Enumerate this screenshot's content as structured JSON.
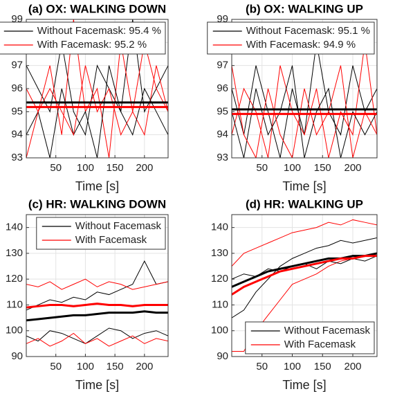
{
  "chart_data": [
    {
      "type": "line",
      "title": "(a) OX: WALKING DOWN",
      "xlabel": "Time [s]",
      "x": [
        0,
        20,
        40,
        60,
        80,
        100,
        120,
        140,
        160,
        180,
        200,
        220,
        240
      ],
      "xlim": [
        0,
        240
      ],
      "xticks": [
        50,
        100,
        150,
        200
      ],
      "ylim": [
        93,
        99
      ],
      "yticks": [
        93,
        94,
        95,
        96,
        97,
        98,
        99
      ],
      "grid": true,
      "legend": "upper right",
      "series": [
        {
          "name": "Without Facemask: 95.4 %",
          "color": "#000000",
          "values": [
            97,
            96,
            95,
            98,
            95,
            94,
            97,
            96,
            95,
            99,
            95,
            96,
            97
          ]
        },
        {
          "name": "With Facemask: 95.2 %",
          "color": "#ff0000",
          "values": [
            96,
            95,
            97,
            94,
            99,
            95,
            96,
            93,
            98,
            95,
            94,
            97,
            95
          ]
        },
        {
          "color": "#000000",
          "values": [
            94,
            95,
            93,
            96,
            94,
            95,
            93,
            97,
            95,
            94,
            96,
            95,
            94
          ]
        },
        {
          "color": "#ff0000",
          "values": [
            93,
            95,
            96,
            95,
            94,
            97,
            95,
            96,
            94,
            95,
            98,
            96,
            95
          ]
        },
        {
          "color": "#000000",
          "width": 3,
          "values": [
            95.4,
            95.4,
            95.4,
            95.4,
            95.4,
            95.4,
            95.4,
            95.4,
            95.4,
            95.4,
            95.4,
            95.4,
            95.4
          ]
        },
        {
          "color": "#ff0000",
          "width": 3,
          "values": [
            95.2,
            95.2,
            95.2,
            95.2,
            95.2,
            95.2,
            95.2,
            95.2,
            95.2,
            95.2,
            95.2,
            95.2,
            95.2
          ]
        }
      ]
    },
    {
      "type": "line",
      "title": "(b) OX: WALKING UP",
      "xlabel": "Time [s]",
      "x": [
        0,
        20,
        40,
        60,
        80,
        100,
        120,
        140,
        160,
        180,
        200,
        220,
        240
      ],
      "xlim": [
        0,
        240
      ],
      "xticks": [
        50,
        100,
        150,
        200
      ],
      "ylim": [
        93,
        99
      ],
      "yticks": [
        93,
        94,
        95,
        96,
        97,
        98,
        99
      ],
      "grid": true,
      "legend": "upper right",
      "series": [
        {
          "name": "Without Facemask: 95.1 %",
          "color": "#000000",
          "values": [
            96,
            94,
            97,
            95,
            93,
            96,
            94,
            98,
            95,
            94,
            97,
            95,
            96
          ]
        },
        {
          "name": "With Facemask: 94.9 %",
          "color": "#ff0000",
          "values": [
            94,
            96,
            95,
            93,
            97,
            95,
            94,
            96,
            93,
            95,
            94,
            98,
            94
          ]
        },
        {
          "color": "#000000",
          "values": [
            95,
            93,
            96,
            94,
            95,
            97,
            93,
            95,
            96,
            93,
            95,
            94,
            95
          ]
        },
        {
          "color": "#ff0000",
          "values": [
            97,
            94,
            93,
            96,
            94,
            93,
            96,
            94,
            95,
            97,
            93,
            95,
            94
          ]
        },
        {
          "color": "#000000",
          "width": 3,
          "values": [
            95.1,
            95.1,
            95.1,
            95.1,
            95.1,
            95.1,
            95.1,
            95.1,
            95.1,
            95.1,
            95.1,
            95.1,
            95.1
          ]
        },
        {
          "color": "#ff0000",
          "width": 3,
          "values": [
            94.9,
            94.9,
            94.9,
            94.9,
            94.9,
            94.9,
            94.9,
            94.9,
            94.9,
            94.9,
            94.9,
            94.9,
            94.9
          ]
        }
      ]
    },
    {
      "type": "line",
      "title": "(c) HR: WALKING DOWN",
      "xlabel": "Time [s]",
      "x": [
        0,
        20,
        40,
        60,
        80,
        100,
        120,
        140,
        160,
        180,
        200,
        220,
        240
      ],
      "xlim": [
        0,
        240
      ],
      "xticks": [
        50,
        100,
        150,
        200
      ],
      "ylim": [
        90,
        145
      ],
      "yticks": [
        90,
        100,
        110,
        120,
        130,
        140
      ],
      "grid": true,
      "legend": "upper right",
      "series": [
        {
          "name": "Without Facemask",
          "color": "#000000",
          "values": [
            108,
            110,
            112,
            111,
            113,
            112,
            115,
            114,
            116,
            118,
            127,
            118,
            119
          ]
        },
        {
          "name": "With Facemask",
          "color": "#ff0000",
          "values": [
            118,
            117,
            119,
            116,
            118,
            120,
            117,
            119,
            118,
            116,
            117,
            118,
            119
          ]
        },
        {
          "color": "#000000",
          "values": [
            98,
            96,
            100,
            99,
            97,
            95,
            98,
            101,
            100,
            97,
            99,
            100,
            98
          ]
        },
        {
          "color": "#ff0000",
          "values": [
            95,
            97,
            94,
            96,
            99,
            95,
            97,
            94,
            96,
            98,
            95,
            97,
            96
          ]
        },
        {
          "color": "#000000",
          "width": 3,
          "values": [
            104,
            104.5,
            105,
            105.5,
            106,
            106,
            106.5,
            107,
            107,
            107,
            107.5,
            107,
            107
          ]
        },
        {
          "color": "#ff0000",
          "width": 3,
          "values": [
            109,
            109.5,
            110,
            110,
            109.5,
            110,
            110.5,
            110,
            110,
            109.5,
            110,
            110,
            110
          ]
        }
      ]
    },
    {
      "type": "line",
      "title": "(d) HR: WALKING UP",
      "xlabel": "Time [s]",
      "x": [
        0,
        20,
        40,
        60,
        80,
        100,
        120,
        140,
        160,
        180,
        200,
        220,
        240
      ],
      "xlim": [
        0,
        240
      ],
      "xticks": [
        50,
        100,
        150,
        200
      ],
      "ylim": [
        90,
        145
      ],
      "yticks": [
        90,
        100,
        110,
        120,
        130,
        140
      ],
      "grid": true,
      "legend": "lower right",
      "series": [
        {
          "name": "Without Facemask",
          "color": "#000000",
          "values": [
            105,
            108,
            115,
            120,
            125,
            128,
            130,
            132,
            133,
            135,
            134,
            135,
            136
          ]
        },
        {
          "name": "With Facemask",
          "color": "#ff0000",
          "values": [
            92,
            92,
            100,
            106,
            112,
            118,
            120,
            122,
            125,
            127,
            128,
            129,
            130
          ]
        },
        {
          "color": "#000000",
          "values": [
            120,
            122,
            121,
            124,
            123,
            125,
            126,
            124,
            127,
            126,
            128,
            127,
            129
          ]
        },
        {
          "color": "#ff0000",
          "values": [
            125,
            130,
            132,
            134,
            136,
            138,
            139,
            140,
            142,
            141,
            143,
            142,
            141
          ]
        },
        {
          "color": "#000000",
          "width": 3,
          "values": [
            117,
            119,
            121,
            123,
            124,
            125,
            126,
            127,
            128,
            128,
            129,
            129,
            130
          ]
        },
        {
          "color": "#ff0000",
          "width": 3,
          "values": [
            114,
            117,
            119,
            121,
            123,
            124,
            125,
            126,
            127,
            128,
            128,
            129,
            129
          ]
        }
      ]
    }
  ]
}
